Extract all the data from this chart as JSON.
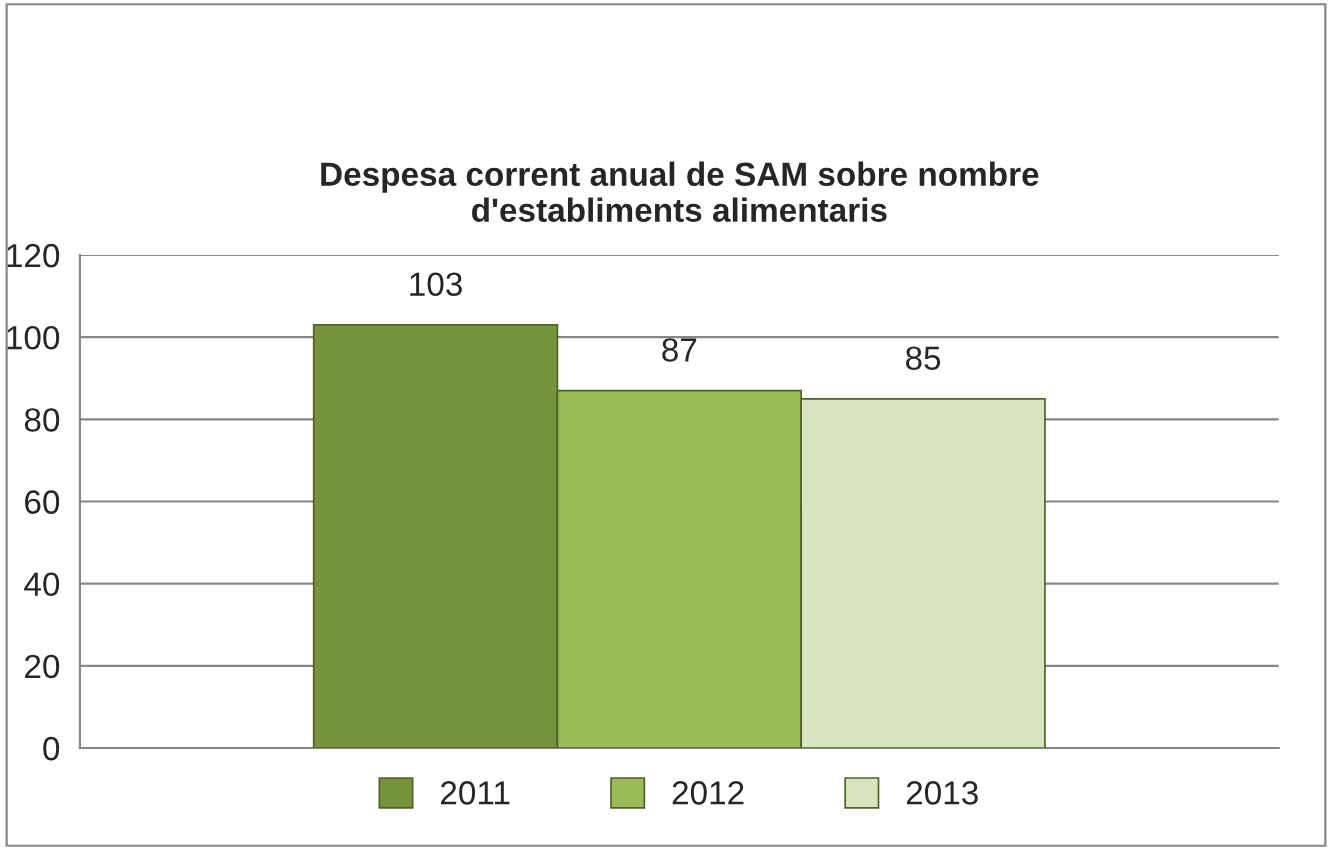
{
  "chart_data": {
    "type": "bar",
    "title": "Despesa corrent anual de SAM sobre nombre\nd'establiments alimentaris",
    "categories": [
      null
    ],
    "series": [
      {
        "name": "2011",
        "color": "#77933c",
        "values": [
          103
        ]
      },
      {
        "name": "2012",
        "color": "#9bbb59",
        "values": [
          87
        ]
      },
      {
        "name": "2013",
        "color": "#d7e4bd",
        "values": [
          85
        ]
      }
    ],
    "ylim": [
      0,
      120
    ],
    "yticks": [
      0,
      20,
      40,
      60,
      80,
      100,
      120
    ],
    "grid": "y",
    "legend": "bottom",
    "data_labels": true
  }
}
